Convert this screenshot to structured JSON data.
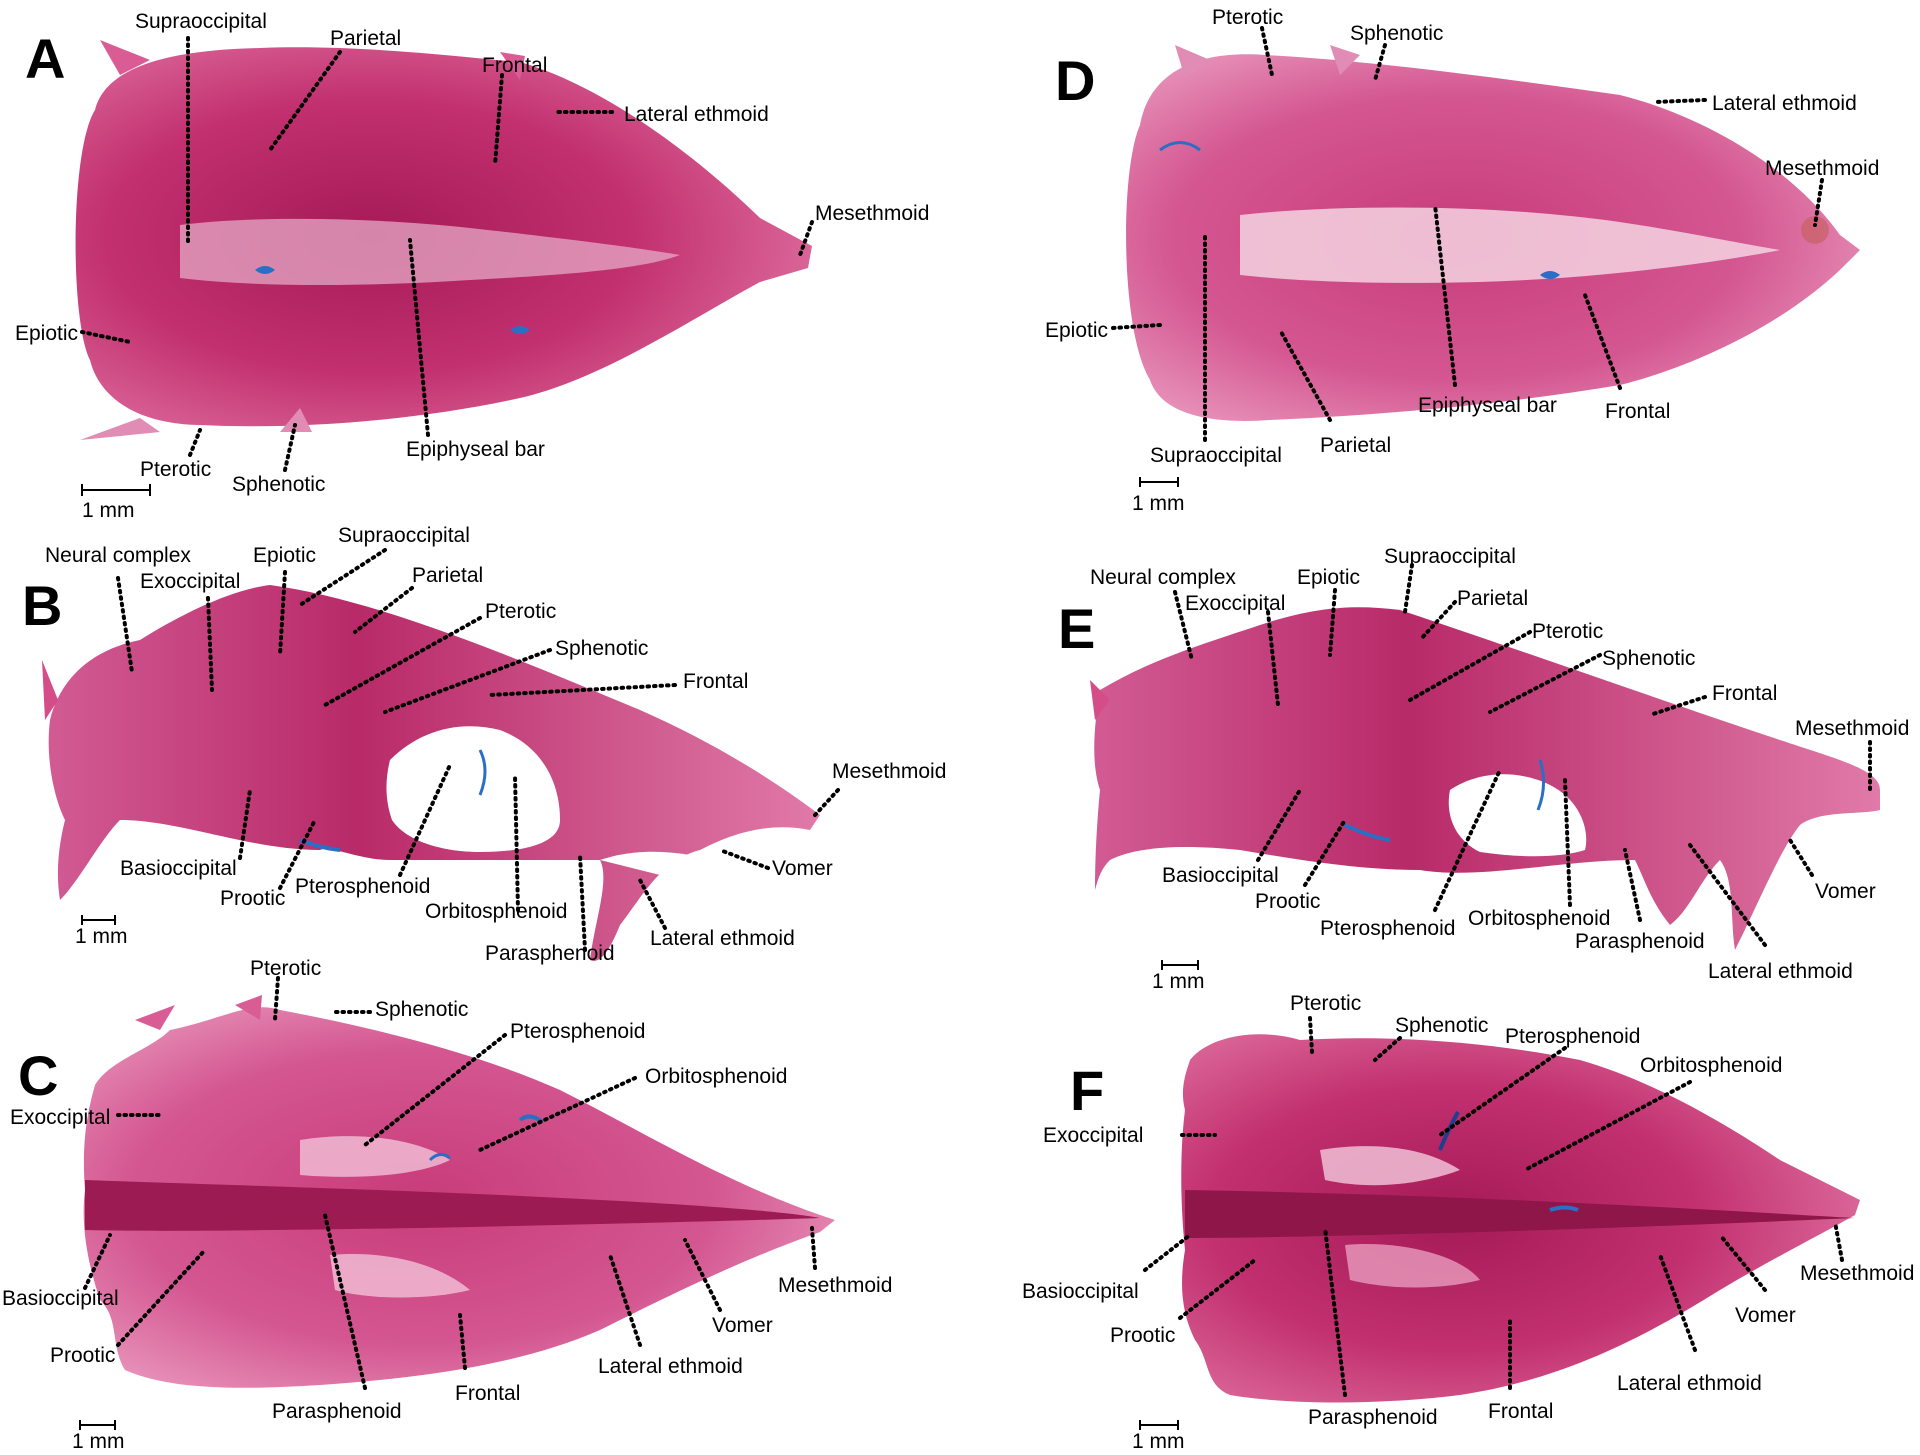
{
  "figure": {
    "colors": {
      "bone_dark": "#9a1850",
      "bone_mid": "#c2306f",
      "bone_light": "#e48ab4",
      "cartilage_blue": "#2a6fc6",
      "background": "#ffffff"
    },
    "panels": [
      {
        "id": "A",
        "letter": "A",
        "scale_label": "1 mm",
        "labels": [
          "Supraoccipital",
          "Parietal",
          "Frontal",
          "Lateral ethmoid",
          "Mesethmoid",
          "Epiotic",
          "Pterotic",
          "Sphenotic",
          "Epiphyseal bar"
        ]
      },
      {
        "id": "B",
        "letter": "B",
        "scale_label": "1 mm",
        "labels": [
          "Neural complex",
          "Exoccipital",
          "Epiotic",
          "Supraoccipital",
          "Parietal",
          "Pterotic",
          "Sphenotic",
          "Frontal",
          "Mesethmoid",
          "Vomer",
          "Lateral ethmoid",
          "Parasphenoid",
          "Orbitosphenoid",
          "Pterosphenoid",
          "Prootic",
          "Basioccipital"
        ]
      },
      {
        "id": "C",
        "letter": "C",
        "scale_label": "1 mm",
        "labels": [
          "Pterotic",
          "Sphenotic",
          "Pterosphenoid",
          "Orbitosphenoid",
          "Exoccipital",
          "Basioccipital",
          "Prootic",
          "Parasphenoid",
          "Frontal",
          "Lateral ethmoid",
          "Vomer",
          "Mesethmoid"
        ]
      },
      {
        "id": "D",
        "letter": "D",
        "scale_label": "1 mm",
        "labels": [
          "Pterotic",
          "Sphenotic",
          "Lateral ethmoid",
          "Mesethmoid",
          "Epiotic",
          "Supraoccipital",
          "Parietal",
          "Epiphyseal bar",
          "Frontal"
        ]
      },
      {
        "id": "E",
        "letter": "E",
        "scale_label": "1 mm",
        "labels": [
          "Neural complex",
          "Exoccipital",
          "Epiotic",
          "Supraoccipital",
          "Parietal",
          "Pterotic",
          "Sphenotic",
          "Frontal",
          "Mesethmoid",
          "Vomer",
          "Lateral ethmoid",
          "Parasphenoid",
          "Orbitosphenoid",
          "Pterosphenoid",
          "Prootic",
          "Basioccipital"
        ]
      },
      {
        "id": "F",
        "letter": "F",
        "scale_label": "1 mm",
        "labels": [
          "Pterotic",
          "Sphenotic",
          "Pterosphenoid",
          "Orbitosphenoid",
          "Exoccipital",
          "Basioccipital",
          "Prootic",
          "Parasphenoid",
          "Frontal",
          "Lateral ethmoid",
          "Vomer",
          "Mesethmoid"
        ]
      }
    ]
  }
}
